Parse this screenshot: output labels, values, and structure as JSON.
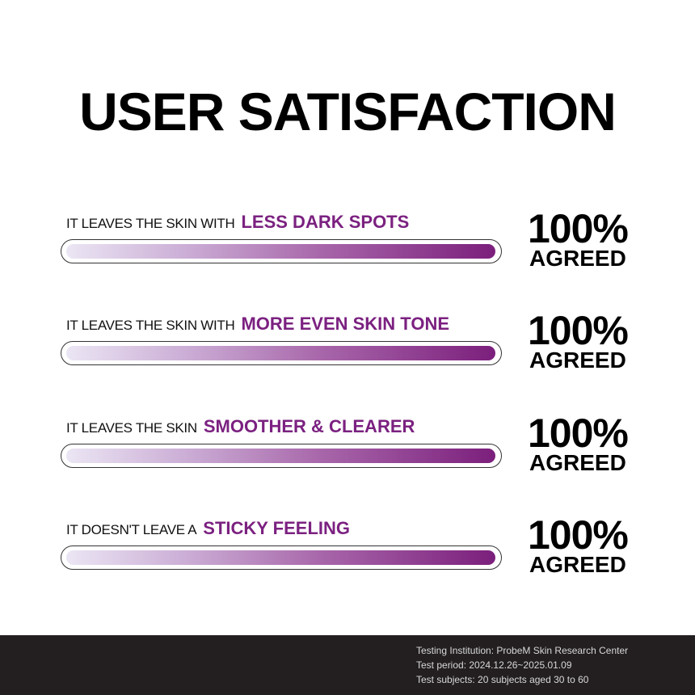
{
  "title": "USER SATISFACTION",
  "items": [
    {
      "prefix": "IT LEAVES THE SKIN WITH",
      "highlight": "LESS DARK SPOTS",
      "percent_label": "100%",
      "agreed_label": "AGREED",
      "value": 100
    },
    {
      "prefix": "IT LEAVES THE SKIN WITH",
      "highlight": "MORE EVEN SKIN TONE",
      "percent_label": "100%",
      "agreed_label": "AGREED",
      "value": 100
    },
    {
      "prefix": "IT LEAVES THE SKIN",
      "highlight": "SMOOTHER & CLEARER",
      "percent_label": "100%",
      "agreed_label": "AGREED",
      "value": 100
    },
    {
      "prefix": "IT DOESN'T LEAVE A",
      "highlight": "STICKY FEELING",
      "percent_label": "100%",
      "agreed_label": "AGREED",
      "value": 100
    }
  ],
  "footer": {
    "institution": "Testing Institution: ProbeM Skin Research Center",
    "period": "Test period: 2024.12.26~2025.01.09",
    "subjects": "Test subjects: 20 subjects aged 30 to 60"
  },
  "colors": {
    "accent": "#7b2180",
    "bar_start": "#ebe6f4",
    "bar_end": "#7b1f7c",
    "footer_bg": "#231f20"
  }
}
